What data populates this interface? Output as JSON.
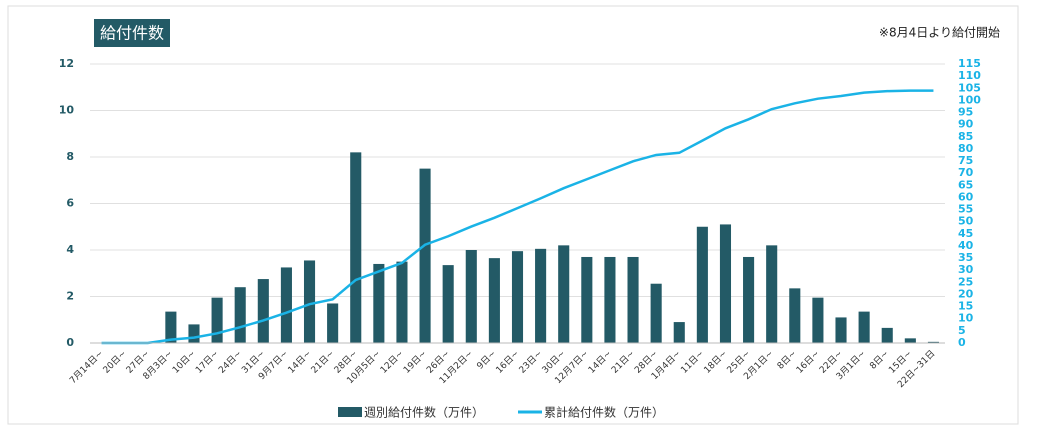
{
  "chart_data": {
    "type": "bar_line",
    "title": "給付件数",
    "annotation": "※8月4日より給付開始",
    "categories": [
      "7月14日~",
      "20日~",
      "27日~",
      "8月3日~",
      "10日~",
      "17日~",
      "24日~",
      "31日~",
      "9月7日~",
      "14日~",
      "21日~",
      "28日~",
      "10月5日~",
      "12日~",
      "19日~",
      "26日~",
      "11月2日~",
      "9日~",
      "16日~",
      "23日~",
      "30日~",
      "12月7日~",
      "14日~",
      "21日~",
      "28日~",
      "1月4日~",
      "11日~",
      "18日~",
      "25日~",
      "2月1日~",
      "8日~",
      "16日~",
      "22日~",
      "3月1日~",
      "8日~",
      "15日~",
      "22日~31日"
    ],
    "series": [
      {
        "name": "週別給付件数（万件）",
        "color": "#235a66",
        "kind": "bar",
        "values": [
          0,
          0,
          0,
          1.35,
          0.8,
          1.95,
          2.4,
          2.75,
          3.25,
          3.55,
          1.7,
          8.2,
          3.4,
          3.5,
          7.5,
          3.35,
          4.0,
          3.65,
          3.95,
          4.05,
          4.2,
          3.7,
          3.7,
          3.7,
          2.55,
          0.9,
          5.0,
          5.1,
          3.7,
          4.2,
          2.35,
          1.95,
          1.1,
          1.35,
          0.65,
          0.2,
          0.05
        ]
      },
      {
        "name": "累計給付件数（万件）",
        "color": "#1ab3e6",
        "kind": "line",
        "axis": "y2",
        "values": [
          0,
          0,
          0,
          1.4,
          2.2,
          4,
          6.5,
          9.3,
          12.5,
          16,
          18,
          26,
          29.5,
          33,
          40.5,
          44,
          48,
          51.6,
          55.6,
          59.6,
          63.8,
          67.5,
          71.2,
          74.9,
          77.5,
          78.4,
          83.4,
          88.5,
          92.2,
          96.4,
          98.8,
          100.7,
          101.8,
          103.2,
          103.8,
          104,
          104
        ]
      }
    ],
    "ylim": [
      0,
      12
    ],
    "yticks": [
      0,
      2,
      4,
      6,
      8,
      10,
      12
    ],
    "y2lim": [
      0,
      115
    ],
    "y2ticks": [
      0,
      5,
      10,
      15,
      20,
      25,
      30,
      35,
      40,
      45,
      50,
      55,
      60,
      65,
      70,
      75,
      80,
      85,
      90,
      95,
      100,
      105,
      110,
      115
    ],
    "grid": true,
    "legend": "bottom"
  }
}
